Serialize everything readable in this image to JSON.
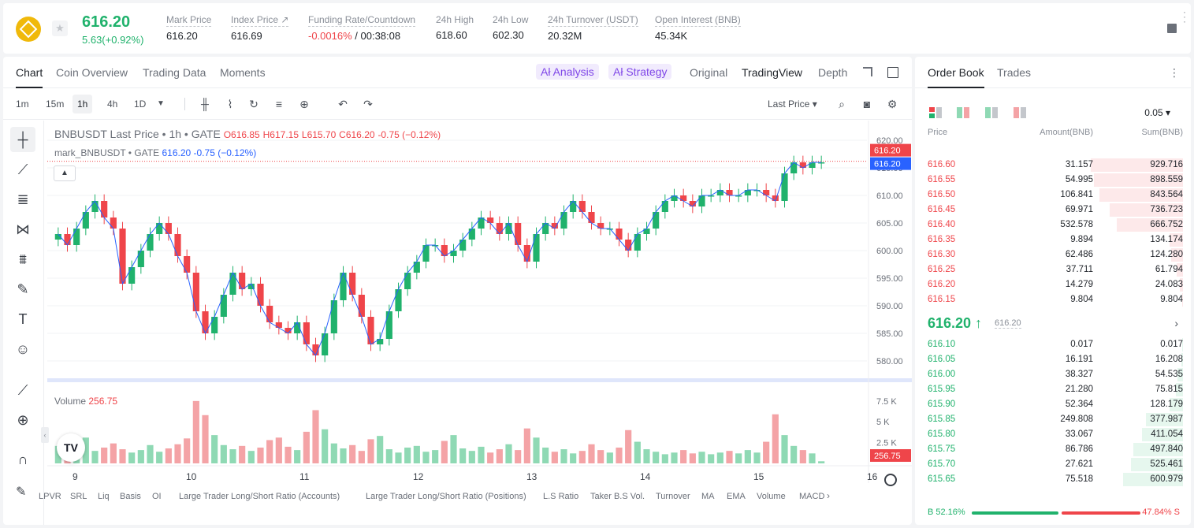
{
  "ticker": {
    "last_price": "616.20",
    "change": "5.63(+0.92%)",
    "stats": [
      {
        "label": "Mark Price",
        "value": "616.20"
      },
      {
        "label": "Index Price ↗",
        "value": "616.69"
      },
      {
        "label": "Funding Rate/Countdown",
        "value_red": "-0.0016%",
        "value": " / 00:38:08"
      },
      {
        "label": "24h High",
        "value": "618.60"
      },
      {
        "label": "24h Low",
        "value": "602.30"
      },
      {
        "label": "24h Turnover (USDT)",
        "value": "20.32M"
      },
      {
        "label": "Open Interest (BNB)",
        "value": "45.34K"
      }
    ]
  },
  "chart_tabs": [
    "Chart",
    "Coin Overview",
    "Trading Data",
    "Moments"
  ],
  "chart_pills": [
    "Ał Analysis",
    "Ał Strategy"
  ],
  "view_tabs": [
    "Original",
    "TradingView",
    "Depth"
  ],
  "timeframes": [
    "1m",
    "15m",
    "1h",
    "4h",
    "1D"
  ],
  "price_type": "Last Price",
  "legend": {
    "main_prefix": "BNBUSDT Last Price • 1h • GATE",
    "o": "O616.85",
    "h": "H617.15",
    "l": "L615.70",
    "c": "C616.20",
    "chg": "-0.75 (−0.12%)",
    "mark_prefix": "mark_BNBUSDT • GATE",
    "mark_val": "616.20",
    "mark_chg": "-0.75 (−0.12%)"
  },
  "volume_label": "Volume",
  "volume_value": "256.75",
  "price_axis": [
    "620.00",
    "615.00",
    "610.00",
    "605.00",
    "600.00",
    "595.00",
    "590.00",
    "585.00",
    "580.00"
  ],
  "price_tags": {
    "last": "616.20",
    "mark": "616.20"
  },
  "volume_axis": [
    "7.5 K",
    "5 K",
    "2.5 K"
  ],
  "time_axis": [
    "9",
    "10",
    "11",
    "12",
    "13",
    "14",
    "15",
    "16"
  ],
  "indicators": [
    "LPVR",
    "SRL",
    "Liq",
    "Basis",
    "OI",
    "Large Trader Long/Short Ratio (Accounts)",
    "Large Trader Long/Short Ratio (Positions)",
    "L.S Ratio",
    "Taker B.S Vol.",
    "Turnover",
    "MA",
    "EMA",
    "Volume",
    "MACD"
  ],
  "tv_logo": "TV",
  "chart_data": {
    "type": "candlestick",
    "title": "BNBUSDT Last Price • 1h • GATE",
    "ylim": [
      579,
      621
    ],
    "x_ticks": [
      "9",
      "10",
      "11",
      "12",
      "13",
      "14",
      "15",
      "16"
    ],
    "closes": [
      603,
      601,
      604,
      607,
      609,
      606,
      604,
      594,
      597,
      600,
      603,
      605,
      603,
      599,
      596,
      589,
      585,
      588,
      592,
      596,
      593,
      594,
      590,
      587,
      586,
      585,
      587,
      583,
      581,
      585,
      591,
      596,
      592,
      588,
      583,
      584,
      589,
      593,
      596,
      598,
      601,
      601,
      599,
      600,
      602,
      604,
      606,
      605,
      603,
      605,
      601,
      598,
      603,
      605,
      604,
      607,
      609,
      607,
      605,
      604,
      604,
      602,
      600,
      603,
      604,
      607,
      609,
      610,
      609,
      608,
      610,
      610,
      611,
      610,
      610,
      611,
      611,
      610,
      609,
      614,
      616,
      615,
      616,
      616
    ],
    "volume": [
      2100,
      1800,
      2600,
      3100,
      1500,
      1900,
      2400,
      1700,
      1300,
      1600,
      2200,
      1400,
      1800,
      2300,
      3000,
      7500,
      5800,
      3400,
      2200,
      1700,
      2100,
      1500,
      1900,
      2800,
      3100,
      2000,
      1600,
      3800,
      6400,
      4100,
      2400,
      1800,
      2200,
      1500,
      2900,
      3300,
      1700,
      1300,
      1900,
      2100,
      1400,
      1600,
      2700,
      3400,
      1800,
      1500,
      2000,
      1300,
      1700,
      2300,
      1600,
      4200,
      3100,
      1900,
      1400,
      1700,
      1200,
      1500,
      2300,
      1600,
      1300,
      1900,
      4000,
      2600,
      1700,
      1400,
      1100,
      1300,
      1600,
      1200,
      1400,
      1100,
      1300,
      1500,
      1200,
      1600,
      1300,
      2600,
      5900,
      3400,
      2100,
      1600,
      1200,
      256
    ]
  },
  "order_book": {
    "tabs": [
      "Order Book",
      "Trades"
    ],
    "precision": "0.05 ▾",
    "headers": [
      "Price",
      "Amount(BNB)",
      "Sum(BNB)"
    ],
    "asks": [
      {
        "price": "616.60",
        "amount": "31.157",
        "sum": "929.716",
        "depth": 0.99
      },
      {
        "price": "616.55",
        "amount": "54.995",
        "sum": "898.559",
        "depth": 0.96
      },
      {
        "price": "616.50",
        "amount": "106.841",
        "sum": "843.564",
        "depth": 0.9
      },
      {
        "price": "616.45",
        "amount": "69.971",
        "sum": "736.723",
        "depth": 0.79
      },
      {
        "price": "616.40",
        "amount": "532.578",
        "sum": "666.752",
        "depth": 0.71
      },
      {
        "price": "616.35",
        "amount": "9.894",
        "sum": "134.174",
        "depth": 0.14
      },
      {
        "price": "616.30",
        "amount": "62.486",
        "sum": "124.280",
        "depth": 0.13
      },
      {
        "price": "616.25",
        "amount": "37.711",
        "sum": "61.794",
        "depth": 0.07
      },
      {
        "price": "616.20",
        "amount": "14.279",
        "sum": "24.083",
        "depth": 0.03
      },
      {
        "price": "616.15",
        "amount": "9.804",
        "sum": "9.804",
        "depth": 0.01
      }
    ],
    "mid_price": "616.20 ↑",
    "mid_mark": "616.20",
    "bids": [
      {
        "price": "616.10",
        "amount": "0.017",
        "sum": "0.017",
        "depth": 0.0
      },
      {
        "price": "616.05",
        "amount": "16.191",
        "sum": "16.208",
        "depth": 0.02
      },
      {
        "price": "616.00",
        "amount": "38.327",
        "sum": "54.535",
        "depth": 0.06
      },
      {
        "price": "615.95",
        "amount": "21.280",
        "sum": "75.815",
        "depth": 0.08
      },
      {
        "price": "615.90",
        "amount": "52.364",
        "sum": "128.179",
        "depth": 0.14
      },
      {
        "price": "615.85",
        "amount": "249.808",
        "sum": "377.987",
        "depth": 0.4
      },
      {
        "price": "615.80",
        "amount": "33.067",
        "sum": "411.054",
        "depth": 0.44
      },
      {
        "price": "615.75",
        "amount": "86.786",
        "sum": "497.840",
        "depth": 0.53
      },
      {
        "price": "615.70",
        "amount": "27.621",
        "sum": "525.461",
        "depth": 0.56
      },
      {
        "price": "615.65",
        "amount": "75.518",
        "sum": "600.979",
        "depth": 0.64
      }
    ],
    "buy_ratio": "B 52.16%",
    "sell_ratio": "47.84% S"
  },
  "colors": {
    "up": "#20b26c",
    "down": "#ef454a",
    "volume_up": "#8fd9b4",
    "volume_down": "#f4a3a6"
  }
}
